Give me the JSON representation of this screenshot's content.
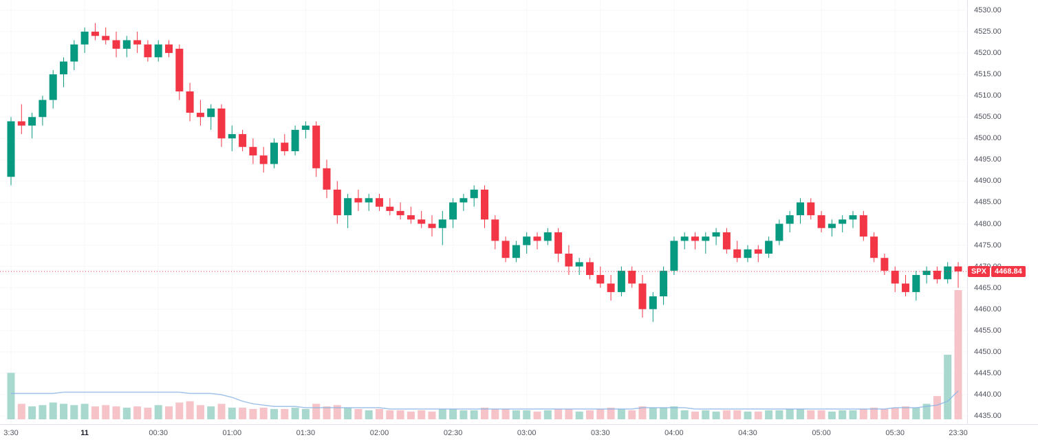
{
  "chart_data": {
    "type": "candlestick",
    "symbol": "SPX",
    "last_price": "4468.84",
    "price_line_value": 4468.84,
    "y_axis": {
      "min": 4435,
      "max": 4530,
      "step": 5,
      "labels": [
        "4530.00",
        "4525.00",
        "4520.00",
        "4515.00",
        "4510.00",
        "4505.00",
        "4500.00",
        "4495.00",
        "4490.00",
        "4485.00",
        "4480.00",
        "4475.00",
        "4470.00",
        "4465.00",
        "4460.00",
        "4455.00",
        "4450.00",
        "4445.00",
        "4440.00",
        "4435.00"
      ]
    },
    "x_ticks": [
      {
        "label": "3:30",
        "index": 0,
        "major": false
      },
      {
        "label": "11",
        "index": 7,
        "major": true
      },
      {
        "label": "00:30",
        "index": 14,
        "major": false
      },
      {
        "label": "01:00",
        "index": 21,
        "major": false
      },
      {
        "label": "01:30",
        "index": 28,
        "major": false
      },
      {
        "label": "02:00",
        "index": 35,
        "major": false
      },
      {
        "label": "02:30",
        "index": 42,
        "major": false
      },
      {
        "label": "03:00",
        "index": 49,
        "major": false
      },
      {
        "label": "03:30",
        "index": 56,
        "major": false
      },
      {
        "label": "04:00",
        "index": 63,
        "major": false
      },
      {
        "label": "04:30",
        "index": 70,
        "major": false
      },
      {
        "label": "05:00",
        "index": 77,
        "major": false
      },
      {
        "label": "05:30",
        "index": 84,
        "major": false
      },
      {
        "label": "23:30",
        "index": 90,
        "major": false
      }
    ],
    "candles": [
      [
        4491,
        4505,
        4489,
        4504
      ],
      [
        4504,
        4508,
        4501,
        4503
      ],
      [
        4503,
        4506,
        4500,
        4505
      ],
      [
        4505,
        4510,
        4503,
        4509
      ],
      [
        4509,
        4516,
        4507,
        4515
      ],
      [
        4515,
        4519,
        4512,
        4518
      ],
      [
        4518,
        4523,
        4516,
        4522
      ],
      [
        4522,
        4526,
        4520,
        4525
      ],
      [
        4525,
        4527,
        4523,
        4524
      ],
      [
        4524,
        4526,
        4522,
        4523
      ],
      [
        4523,
        4525,
        4519,
        4521
      ],
      [
        4521,
        4524,
        4519,
        4523
      ],
      [
        4523,
        4525,
        4520,
        4522
      ],
      [
        4522,
        4523,
        4518,
        4519
      ],
      [
        4519,
        4523,
        4518,
        4522
      ],
      [
        4522,
        4523,
        4519,
        4520
      ],
      [
        4521,
        4522,
        4509,
        4511
      ],
      [
        4511,
        4513,
        4504,
        4506
      ],
      [
        4506,
        4509,
        4503,
        4505
      ],
      [
        4505,
        4508,
        4502,
        4507
      ],
      [
        4507,
        4508,
        4498,
        4500
      ],
      [
        4500,
        4503,
        4497,
        4501
      ],
      [
        4501,
        4502,
        4497,
        4498
      ],
      [
        4498,
        4500,
        4494,
        4496
      ],
      [
        4496,
        4498,
        4492,
        4494
      ],
      [
        4494,
        4500,
        4493,
        4499
      ],
      [
        4499,
        4501,
        4496,
        4497
      ],
      [
        4497,
        4503,
        4496,
        4502
      ],
      [
        4502,
        4504,
        4500,
        4503
      ],
      [
        4503,
        4504,
        4491,
        4493
      ],
      [
        4493,
        4495,
        4486,
        4488
      ],
      [
        4488,
        4490,
        4480,
        4482
      ],
      [
        4482,
        4487,
        4479,
        4486
      ],
      [
        4486,
        4488,
        4483,
        4485
      ],
      [
        4485,
        4487,
        4483,
        4486
      ],
      [
        4486,
        4487,
        4483,
        4484
      ],
      [
        4484,
        4486,
        4482,
        4483
      ],
      [
        4483,
        4485,
        4481,
        4482
      ],
      [
        4482,
        4484,
        4480,
        4481
      ],
      [
        4481,
        4483,
        4479,
        4480
      ],
      [
        4480,
        4482,
        4477,
        4479
      ],
      [
        4479,
        4483,
        4475,
        4481
      ],
      [
        4481,
        4486,
        4479,
        4485
      ],
      [
        4485,
        4487,
        4483,
        4486
      ],
      [
        4486,
        4489,
        4484,
        4488
      ],
      [
        4488,
        4489,
        4479,
        4481
      ],
      [
        4481,
        4482,
        4474,
        4476
      ],
      [
        4476,
        4477,
        4471,
        4472
      ],
      [
        4472,
        4476,
        4471,
        4475
      ],
      [
        4475,
        4478,
        4473,
        4477
      ],
      [
        4477,
        4478,
        4474,
        4476
      ],
      [
        4476,
        4479,
        4475,
        4478
      ],
      [
        4478,
        4479,
        4471,
        4473
      ],
      [
        4473,
        4475,
        4468,
        4470
      ],
      [
        4470,
        4472,
        4468,
        4471
      ],
      [
        4471,
        4472,
        4467,
        4468
      ],
      [
        4468,
        4470,
        4465,
        4466
      ],
      [
        4466,
        4468,
        4462,
        4464
      ],
      [
        4464,
        4470,
        4463,
        4469
      ],
      [
        4469,
        4470,
        4465,
        4466
      ],
      [
        4466,
        4468,
        4458,
        4460
      ],
      [
        4460,
        4464,
        4457,
        4463
      ],
      [
        4463,
        4470,
        4461,
        4469
      ],
      [
        4469,
        4477,
        4468,
        4476
      ],
      [
        4476,
        4478,
        4474,
        4477
      ],
      [
        4477,
        4478,
        4474,
        4476
      ],
      [
        4476,
        4478,
        4473,
        4477
      ],
      [
        4477,
        4479,
        4475,
        4478
      ],
      [
        4478,
        4479,
        4473,
        4474
      ],
      [
        4474,
        4476,
        4471,
        4472
      ],
      [
        4472,
        4475,
        4471,
        4474
      ],
      [
        4474,
        4475,
        4471,
        4473
      ],
      [
        4473,
        4477,
        4472,
        4476
      ],
      [
        4476,
        4481,
        4475,
        4480
      ],
      [
        4480,
        4483,
        4478,
        4482
      ],
      [
        4482,
        4486,
        4480,
        4485
      ],
      [
        4485,
        4486,
        4481,
        4482
      ],
      [
        4482,
        4483,
        4478,
        4479
      ],
      [
        4479,
        4481,
        4477,
        4480
      ],
      [
        4480,
        4482,
        4478,
        4481
      ],
      [
        4481,
        4483,
        4479,
        4482
      ],
      [
        4482,
        4483,
        4476,
        4477
      ],
      [
        4477,
        4478,
        4471,
        4472
      ],
      [
        4472,
        4473,
        4468,
        4469
      ],
      [
        4469,
        4470,
        4464,
        4466
      ],
      [
        4466,
        4468,
        4463,
        4464
      ],
      [
        4464,
        4469,
        4462,
        4468
      ],
      [
        4468,
        4470,
        4466,
        4469
      ],
      [
        4469,
        4470,
        4466,
        4467
      ],
      [
        4467,
        4471,
        4466,
        4470
      ],
      [
        4470,
        4471,
        4465,
        4468.84
      ]
    ],
    "volumes": [
      36,
      12,
      10,
      11,
      13,
      12,
      11,
      12,
      10,
      11,
      10,
      9,
      10,
      9,
      11,
      10,
      13,
      14,
      11,
      10,
      12,
      9,
      9,
      8,
      9,
      8,
      8,
      9,
      8,
      12,
      10,
      11,
      9,
      8,
      7,
      8,
      7,
      7,
      6,
      7,
      6,
      8,
      8,
      7,
      7,
      9,
      8,
      8,
      7,
      7,
      6,
      7,
      8,
      8,
      6,
      7,
      8,
      9,
      8,
      7,
      10,
      9,
      9,
      10,
      7,
      6,
      7,
      6,
      7,
      7,
      6,
      6,
      7,
      7,
      8,
      8,
      7,
      7,
      6,
      7,
      7,
      8,
      9,
      8,
      9,
      10,
      9,
      12,
      18,
      50,
      100
    ],
    "volume_ma": [
      20,
      20,
      20,
      20,
      20,
      21,
      21,
      21,
      21,
      21,
      21,
      21,
      21,
      21,
      21,
      21,
      21,
      20,
      20,
      20,
      19,
      17,
      14,
      12,
      11,
      10,
      10,
      10,
      9,
      9,
      9,
      9,
      9,
      9,
      9,
      9,
      8,
      8,
      8,
      8,
      8,
      8,
      8,
      8,
      8,
      8,
      8,
      8,
      8,
      8,
      8,
      8,
      8,
      8,
      8,
      8,
      8,
      8,
      8,
      8,
      9,
      9,
      9,
      9,
      9,
      8,
      8,
      8,
      8,
      8,
      8,
      8,
      8,
      8,
      8,
      8,
      8,
      8,
      8,
      8,
      8,
      8,
      8,
      8,
      9,
      9,
      9,
      10,
      11,
      14,
      22
    ],
    "colors": {
      "up": "#089981",
      "down": "#f23645",
      "vol_up": "#a8d8ce",
      "vol_down": "#f6c3c8",
      "volume_ma_line": "#89b4e5",
      "price_line": "#f23645",
      "badge_bg": "#f23645",
      "axis_text": "#50535e",
      "axis_border": "#e0e3eb",
      "grid": "#f6f7f9",
      "background": "#ffffff"
    }
  }
}
